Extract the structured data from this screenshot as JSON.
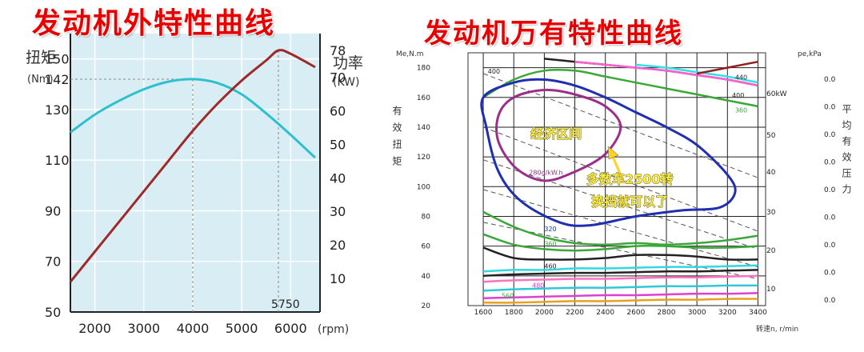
{
  "colors": {
    "title_red": "#e60000",
    "torque": "#9e2a2a",
    "power": "#2fbfcf",
    "left_bg": "#d9eef4",
    "grid": "#1a1a1a",
    "economy_loop": "#9a2f8a",
    "highlight_text": "#ffef3a"
  },
  "left": {
    "title": "发动机外特性曲线",
    "left_axis_label": "扭矩",
    "left_axis_unit": "(Nm)",
    "right_axis_label": "功率",
    "right_axis_unit": "(KW)",
    "x_unit": "(rpm)",
    "peak_power_rpm_label": "5750",
    "peak_torque_label": "142",
    "y_ticks": [
      "150",
      "142",
      "130",
      "110",
      "90",
      "70",
      "50"
    ],
    "power_ticks": [
      "78",
      "70",
      "60",
      "50",
      "40",
      "30",
      "20",
      "10"
    ],
    "x_ticks": [
      "2000",
      "3000",
      "4000",
      "5000",
      "6000"
    ]
  },
  "chart_data": [
    {
      "type": "line",
      "title": "发动机外特性曲线",
      "xlabel": "(rpm)",
      "ylabel": "扭矩 (Nm)",
      "y2label": "功率 (KW)",
      "xlim": [
        1500,
        6600
      ],
      "ylim": [
        50,
        160
      ],
      "y2lim": [
        0,
        83
      ],
      "y_ticks": [
        50,
        70,
        90,
        110,
        130,
        142,
        150
      ],
      "y2_ticks": [
        10,
        20,
        30,
        40,
        50,
        60,
        70,
        78
      ],
      "x_ticks": [
        2000,
        3000,
        4000,
        5000,
        6000
      ],
      "grid": true,
      "annotations": [
        {
          "text": "5750",
          "x": 5750
        },
        {
          "text": "142",
          "x": 4000,
          "y": 142
        }
      ],
      "series": [
        {
          "axis": "left",
          "x": [
            1500,
            2000,
            2500,
            3000,
            3500,
            4000,
            4500,
            5000,
            5500,
            6000,
            6500
          ],
          "values": [
            121,
            128,
            133.5,
            138,
            141,
            142,
            140.5,
            136,
            128.5,
            120,
            111
          ]
        },
        {
          "axis": "right",
          "x": [
            1500,
            2000,
            2500,
            3000,
            3500,
            4000,
            4500,
            5000,
            5500,
            5750,
            6000,
            6500
          ],
          "values": [
            9,
            18,
            27,
            36,
            45,
            54,
            62,
            69,
            75,
            78,
            77,
            73
          ]
        }
      ]
    },
    {
      "type": "line",
      "title": "发动机万有特性曲线",
      "xlabel": "转速n, r/min",
      "ylabel": "有效扭矩",
      "y_unit": "Me,N.m",
      "y2label": "平均有效压力",
      "y2_unit": "pe,kPa",
      "xlim": [
        1500,
        3450
      ],
      "ylim": [
        20,
        190
      ],
      "x_ticks": [
        1600,
        1800,
        2000,
        2200,
        2400,
        2600,
        2800,
        3000,
        3200,
        3400
      ],
      "y_ticks": [
        20,
        40,
        60,
        80,
        100,
        120,
        140,
        160,
        180
      ],
      "power_ticks": [
        "60kW",
        "50",
        "40",
        "30",
        "20",
        "10"
      ],
      "pressure_ticks": [
        "0.0",
        "0.0",
        "0.0",
        "0.0",
        "0.0",
        "0.0",
        "0.0",
        "0.0",
        "0.0"
      ],
      "grid": true,
      "annotations": [
        {
          "text": "经济区间",
          "x": 2120,
          "y": 136
        },
        {
          "text": "多数车2500转",
          "x": 2560,
          "y": 102
        },
        {
          "text": "换挡就可以了",
          "x": 2560,
          "y": 87
        }
      ],
      "contour_labels": [
        "400",
        "280g/kW.h",
        "320",
        "360",
        "460",
        "480",
        "560",
        "360",
        "400",
        "440"
      ],
      "series": [
        {
          "x": [
            1600,
            1800,
            2000,
            2200,
            2400,
            2600,
            2800,
            3000,
            3200,
            3400
          ],
          "values": [
            22,
            22,
            22.5,
            23,
            23,
            23.5,
            24,
            24,
            24.5,
            24.5
          ]
        },
        {
          "x": [
            1600,
            1800,
            2000,
            2200,
            2400,
            2600,
            2800,
            3000,
            3200,
            3400
          ],
          "values": [
            25,
            25.5,
            26,
            26.5,
            27,
            27,
            27.5,
            28,
            28,
            28.5
          ]
        },
        {
          "x": [
            1600,
            1800,
            2000,
            2200,
            2400,
            2600,
            2800,
            3000,
            3200,
            3400
          ],
          "values": [
            30,
            31,
            31.5,
            32,
            32,
            32.5,
            33,
            33,
            33.5,
            33.5
          ]
        },
        {
          "x": [
            1600,
            1800,
            2000,
            2200,
            2400,
            2600,
            2800,
            3000,
            3200,
            3400
          ],
          "values": [
            36,
            37,
            37.5,
            38,
            38,
            38.5,
            39,
            39,
            39.5,
            40
          ]
        },
        {
          "x": [
            1600,
            1800,
            2000,
            2200,
            2400,
            2600,
            2800,
            3000,
            3200,
            3400
          ],
          "values": [
            40,
            41,
            41.5,
            42,
            42,
            42.5,
            43,
            43,
            43.5,
            44
          ]
        },
        {
          "x": [
            1600,
            1800,
            2000,
            2200,
            2400,
            2600,
            2800,
            3000,
            3200,
            3400
          ],
          "values": [
            43,
            44,
            44,
            45,
            45,
            45.5,
            46,
            46,
            46.5,
            47
          ]
        },
        {
          "x": [
            1600,
            1800,
            2000,
            2200,
            2400,
            2600,
            2800,
            3000,
            3200,
            3400
          ],
          "values": [
            59,
            52,
            51,
            51,
            52,
            54,
            54,
            53,
            51,
            51
          ]
        },
        {
          "x": [
            1600,
            1800,
            2000,
            2200,
            2400,
            2600,
            2800,
            3000,
            3200,
            3400
          ],
          "values": [
            68,
            61,
            58,
            57,
            58,
            60,
            60,
            59,
            59,
            60
          ]
        },
        {
          "x": [
            1600,
            1800,
            2000,
            2200,
            2400,
            2600,
            2800,
            3000,
            3200,
            3400
          ],
          "values": [
            83,
            73,
            66,
            62,
            61,
            62,
            61,
            62,
            64,
            67
          ]
        },
        {
          "x": [
            1600,
            1800,
            2000,
            2200,
            2400,
            2600,
            2800,
            3000,
            3200,
            3400
          ],
          "values": [
            160,
            172,
            178,
            178,
            174,
            170,
            166,
            162,
            158,
            154
          ]
        },
        {
          "x": [
            2000,
            2200,
            2400,
            2600,
            2800,
            3000,
            3200,
            3400
          ],
          "values": [
            186,
            184,
            182,
            180,
            178,
            175,
            172,
            168
          ]
        },
        {
          "x": [
            2200,
            2400,
            2600,
            2800,
            3000,
            3200,
            3400
          ],
          "values": [
            184,
            182,
            180,
            178,
            175,
            172,
            168
          ]
        },
        {
          "x": [
            2600,
            2800,
            3000,
            3200,
            3400
          ],
          "values": [
            182,
            180,
            177,
            174,
            170
          ]
        },
        {
          "x": [
            3000,
            3200,
            3400
          ],
          "values": [
            176,
            180,
            184
          ]
        }
      ]
    }
  ]
}
